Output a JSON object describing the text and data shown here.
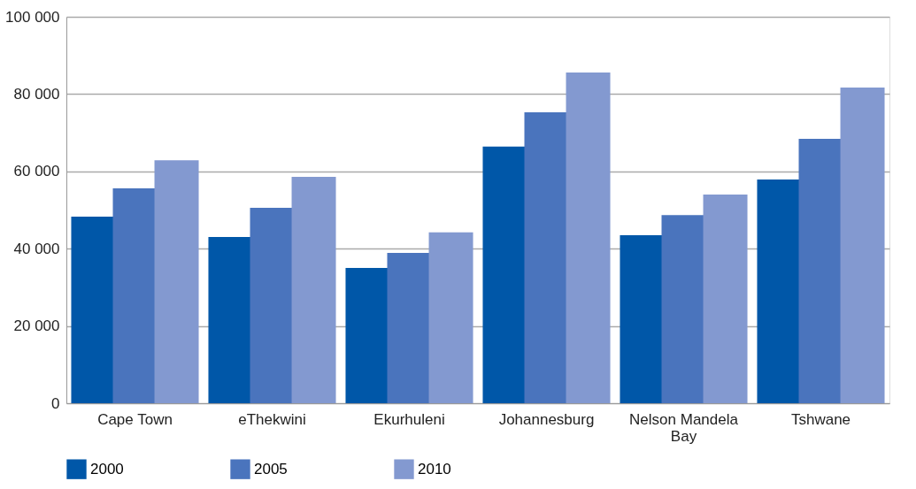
{
  "chart_data": {
    "type": "bar",
    "categories": [
      "Cape Town",
      "eThekwini",
      "Ekurhuleni",
      "Johannesburg",
      "Nelson Mandela Bay",
      "Tshwane"
    ],
    "series": [
      {
        "name": "2000",
        "color": "#0057a8",
        "values": [
          48300,
          43000,
          35000,
          66400,
          43500,
          57900
        ]
      },
      {
        "name": "2005",
        "color": "#4a74bd",
        "values": [
          55600,
          50600,
          38900,
          75300,
          48700,
          68400
        ]
      },
      {
        "name": "2010",
        "color": "#8399d0",
        "values": [
          62900,
          58600,
          44200,
          85600,
          54000,
          81700
        ]
      }
    ],
    "ylim": [
      0,
      100000
    ],
    "yticks": [
      {
        "value": 0,
        "label": "0"
      },
      {
        "value": 20000,
        "label": "20 000"
      },
      {
        "value": 40000,
        "label": "40 000"
      },
      {
        "value": 60000,
        "label": "60 000"
      },
      {
        "value": 80000,
        "label": "80 000"
      },
      {
        "value": 100000,
        "label": "100 000"
      }
    ],
    "grid": "y",
    "legend": "bottom"
  }
}
